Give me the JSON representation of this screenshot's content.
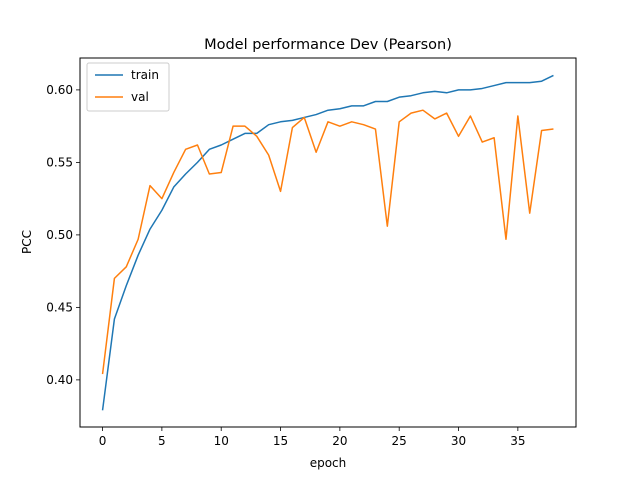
{
  "chart_data": {
    "type": "line",
    "title": "Model performance Dev (Pearson)",
    "xlabel": "epoch",
    "ylabel": "PCC",
    "xlim": [
      -1.9,
      39.9
    ],
    "ylim": [
      0.3675,
      0.622
    ],
    "xticks": [
      0,
      5,
      10,
      15,
      20,
      25,
      30,
      35
    ],
    "yticks": [
      0.4,
      0.45,
      0.5,
      0.55,
      0.6
    ],
    "xtick_labels": [
      "0",
      "5",
      "10",
      "15",
      "20",
      "25",
      "30",
      "35"
    ],
    "ytick_labels": [
      "0.40",
      "0.45",
      "0.50",
      "0.55",
      "0.60"
    ],
    "grid": false,
    "legend_position": "top-left",
    "x": [
      0,
      1,
      2,
      3,
      4,
      5,
      6,
      7,
      8,
      9,
      10,
      11,
      12,
      13,
      14,
      15,
      16,
      17,
      18,
      19,
      20,
      21,
      22,
      23,
      24,
      25,
      26,
      27,
      28,
      29,
      30,
      31,
      32,
      33,
      34,
      35,
      36,
      37,
      38
    ],
    "series": [
      {
        "name": "train",
        "color": "#1f77b4",
        "values": [
          0.379,
          0.442,
          0.465,
          0.486,
          0.504,
          0.517,
          0.533,
          0.542,
          0.55,
          0.559,
          0.562,
          0.566,
          0.57,
          0.57,
          0.576,
          0.578,
          0.579,
          0.581,
          0.583,
          0.586,
          0.587,
          0.589,
          0.589,
          0.592,
          0.592,
          0.595,
          0.596,
          0.598,
          0.599,
          0.598,
          0.6,
          0.6,
          0.601,
          0.603,
          0.605,
          0.605,
          0.605,
          0.606,
          0.61
        ]
      },
      {
        "name": "val",
        "color": "#ff7f0e",
        "values": [
          0.404,
          0.47,
          0.478,
          0.497,
          0.534,
          0.525,
          0.543,
          0.559,
          0.562,
          0.542,
          0.543,
          0.575,
          0.575,
          0.568,
          0.555,
          0.53,
          0.574,
          0.581,
          0.557,
          0.578,
          0.575,
          0.578,
          0.576,
          0.573,
          0.506,
          0.578,
          0.584,
          0.586,
          0.58,
          0.584,
          0.568,
          0.582,
          0.564,
          0.567,
          0.497,
          0.582,
          0.515,
          0.572,
          0.573
        ]
      }
    ]
  }
}
